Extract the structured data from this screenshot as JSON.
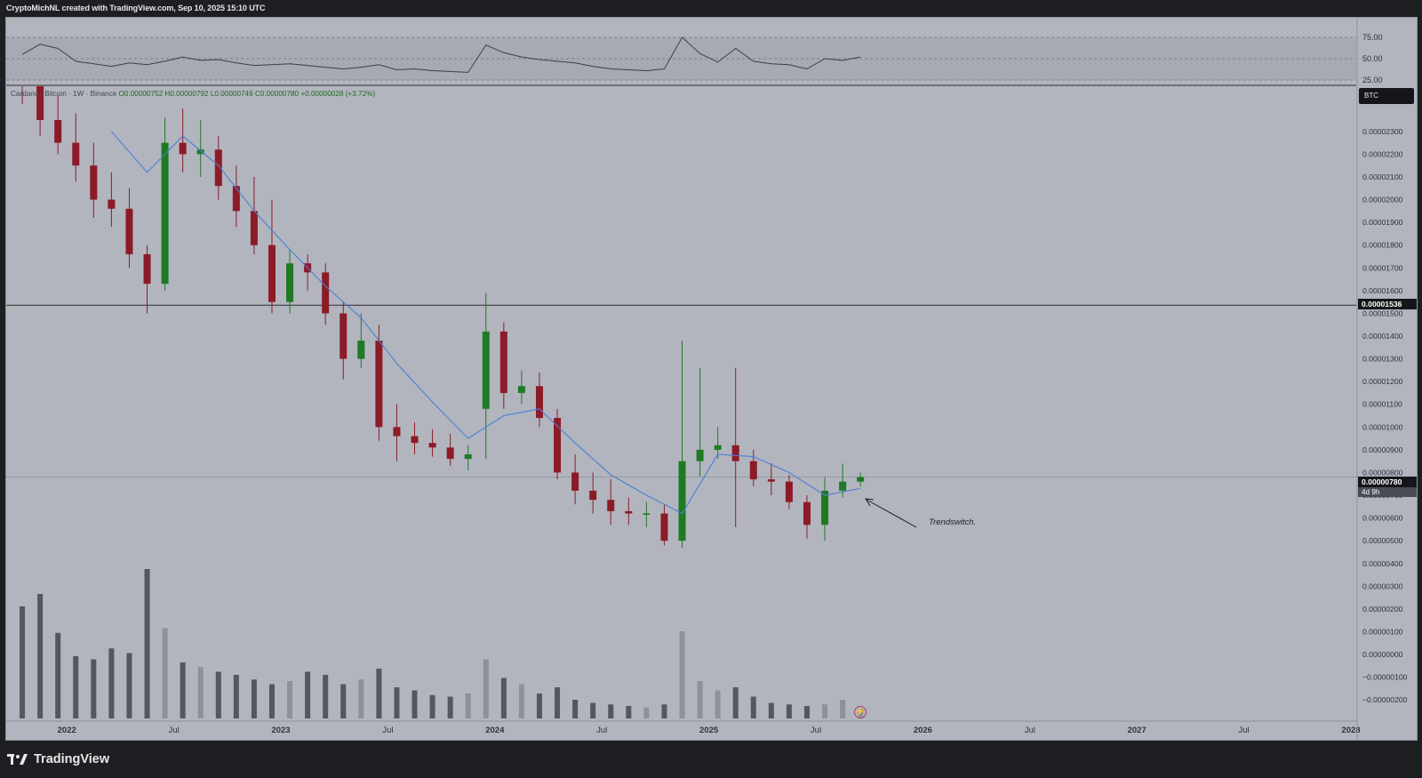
{
  "header": {
    "attribution": "CryptoMichNL created with TradingView.com, Sep 10, 2025 15:10 UTC"
  },
  "legend": {
    "symbol": "Cardano / Bitcoin · 1W · Binance",
    "ohlc": "O0.00000752  H0.00000792  L0.00000749  C0.00000780  +0.00000028 (+3.72%)"
  },
  "symbol_badge": "BTC",
  "horizontal_level": {
    "label": "0.00001536",
    "value": 1.536e-05
  },
  "last_price": {
    "label": "0.00000780",
    "countdown": "4d 9h",
    "value": 7.8e-06
  },
  "annotation": {
    "text": "Trendswitch."
  },
  "footer": {
    "brand": "TradingView"
  },
  "colors": {
    "background": "#b2b5be",
    "up": "#1e7a23",
    "down": "#8c1b27",
    "ma": "#4a7fd6",
    "volume_light": "#8a8d95",
    "volume_dark": "#4a4d54"
  },
  "chart_data": [
    {
      "type": "line",
      "name": "RSI pane",
      "y_ticks": [
        "75.00",
        "50.00",
        "25.00"
      ],
      "ylim": [
        25,
        75
      ],
      "x": [
        "2021-10",
        "2021-11",
        "2021-12",
        "2022-01",
        "2022-02",
        "2022-03",
        "2022-04",
        "2022-05",
        "2022-06",
        "2022-07",
        "2022-08",
        "2022-09",
        "2022-10",
        "2022-11",
        "2022-12",
        "2023-01",
        "2023-02",
        "2023-03",
        "2023-04",
        "2023-05",
        "2023-06",
        "2023-07",
        "2023-08",
        "2023-09",
        "2023-10",
        "2023-11",
        "2023-12",
        "2024-01",
        "2024-02",
        "2024-03",
        "2024-04",
        "2024-05",
        "2024-06",
        "2024-07",
        "2024-08",
        "2024-09",
        "2024-10",
        "2024-11",
        "2024-12",
        "2025-01",
        "2025-02",
        "2025-03",
        "2025-04",
        "2025-05",
        "2025-06",
        "2025-07",
        "2025-08",
        "2025-09"
      ],
      "values": [
        55,
        67,
        62,
        47,
        44,
        41,
        45,
        43,
        47,
        52,
        48,
        49,
        45,
        42,
        43,
        44,
        42,
        40,
        38,
        40,
        43,
        37,
        38,
        36,
        35,
        34,
        66,
        57,
        52,
        49,
        47,
        45,
        41,
        38,
        37,
        36,
        38,
        75,
        56,
        46,
        62,
        47,
        44,
        43,
        38,
        50,
        48,
        52
      ]
    },
    {
      "type": "candlestick",
      "name": "Cardano / Bitcoin · 1W · Binance",
      "y_ticks": [
        "0.00002300",
        "0.00002200",
        "0.00002100",
        "0.00002000",
        "0.00001900",
        "0.00001800",
        "0.00001700",
        "0.00001600",
        "0.00001500",
        "0.00001400",
        "0.00001300",
        "0.00001200",
        "0.00001100",
        "0.00001000",
        "0.00000900",
        "0.00000800",
        "0.00000700",
        "0.00000600",
        "0.00000500",
        "0.00000400",
        "0.00000300",
        "0.00000200",
        "0.00000100",
        "0.00000000",
        "−0.00000100",
        "−0.00000200"
      ],
      "x_ticks": [
        "2022",
        "Jul",
        "2023",
        "Jul",
        "2024",
        "Jul",
        "2025",
        "Jul",
        "2026",
        "Jul",
        "2027",
        "Jul",
        "2028"
      ],
      "ylim": [
        -2.5e-06,
        2.44e-05
      ],
      "x": [
        "2021-10",
        "2021-11",
        "2021-12",
        "2022-01",
        "2022-02",
        "2022-03",
        "2022-04",
        "2022-05",
        "2022-06",
        "2022-07",
        "2022-08",
        "2022-09",
        "2022-10",
        "2022-11",
        "2022-12",
        "2023-01",
        "2023-02",
        "2023-03",
        "2023-04",
        "2023-05",
        "2023-06",
        "2023-07",
        "2023-08",
        "2023-09",
        "2023-10",
        "2023-11",
        "2023-12",
        "2024-01",
        "2024-02",
        "2024-03",
        "2024-04",
        "2024-05",
        "2024-06",
        "2024-07",
        "2024-08",
        "2024-09",
        "2024-10",
        "2024-11",
        "2024-12",
        "2025-01",
        "2025-02",
        "2025-03",
        "2025-04",
        "2025-05",
        "2025-06",
        "2025-07",
        "2025-08",
        "2025-09"
      ],
      "open": [
        2.75e-05,
        2.5e-05,
        2.35e-05,
        2.25e-05,
        2.15e-05,
        2e-05,
        1.96e-05,
        1.76e-05,
        1.63e-05,
        2.25e-05,
        2.2e-05,
        2.22e-05,
        2.06e-05,
        1.95e-05,
        1.8e-05,
        1.55e-05,
        1.72e-05,
        1.68e-05,
        1.5e-05,
        1.3e-05,
        1.38e-05,
        1e-05,
        9.6e-06,
        9.3e-06,
        9.1e-06,
        8.6e-06,
        1.08e-05,
        1.42e-05,
        1.15e-05,
        1.18e-05,
        1.04e-05,
        8e-06,
        7.2e-06,
        6.8e-06,
        6.3e-06,
        6.2e-06,
        6.2e-06,
        5e-06,
        8.5e-06,
        9e-06,
        9.2e-06,
        8.5e-06,
        7.7e-06,
        7.6e-06,
        6.7e-06,
        5.7e-06,
        7.2e-06,
        7.6e-06
      ],
      "close": [
        2.5e-05,
        2.35e-05,
        2.25e-05,
        2.15e-05,
        2e-05,
        1.96e-05,
        1.76e-05,
        1.63e-05,
        2.25e-05,
        2.2e-05,
        2.22e-05,
        2.06e-05,
        1.95e-05,
        1.8e-05,
        1.55e-05,
        1.72e-05,
        1.68e-05,
        1.5e-05,
        1.3e-05,
        1.38e-05,
        1e-05,
        9.6e-06,
        9.3e-06,
        9.1e-06,
        8.6e-06,
        8.8e-06,
        1.42e-05,
        1.15e-05,
        1.18e-05,
        1.04e-05,
        8e-06,
        7.2e-06,
        6.8e-06,
        6.3e-06,
        6.2e-06,
        6.2e-06,
        5e-06,
        8.5e-06,
        9e-06,
        9.2e-06,
        8.5e-06,
        7.7e-06,
        7.6e-06,
        6.7e-06,
        5.7e-06,
        7.2e-06,
        7.6e-06,
        7.8e-06
      ],
      "high": [
        2.9e-05,
        2.62e-05,
        2.46e-05,
        2.38e-05,
        2.25e-05,
        2.12e-05,
        2.05e-05,
        1.8e-05,
        2.36e-05,
        2.4e-05,
        2.35e-05,
        2.28e-05,
        2.15e-05,
        2.1e-05,
        2e-05,
        1.78e-05,
        1.76e-05,
        1.72e-05,
        1.55e-05,
        1.5e-05,
        1.45e-05,
        1.1e-05,
        1.02e-05,
        9.9e-06,
        9.7e-06,
        9.2e-06,
        1.59e-05,
        1.46e-05,
        1.25e-05,
        1.24e-05,
        1.08e-05,
        8.8e-06,
        8e-06,
        7.7e-06,
        6.9e-06,
        6.7e-06,
        6.6e-06,
        1.38e-05,
        1.26e-05,
        1e-05,
        1.26e-05,
        9e-06,
        8.4e-06,
        7.9e-06,
        7e-06,
        7.8e-06,
        8.4e-06,
        8e-06
      ],
      "low": [
        2.42e-05,
        2.28e-05,
        2.2e-05,
        2.08e-05,
        1.92e-05,
        1.88e-05,
        1.7e-05,
        1.5e-05,
        1.6e-05,
        2.12e-05,
        2.1e-05,
        2e-05,
        1.88e-05,
        1.76e-05,
        1.5e-05,
        1.5e-05,
        1.6e-05,
        1.45e-05,
        1.21e-05,
        1.26e-05,
        9.4e-06,
        8.5e-06,
        8.8e-06,
        8.7e-06,
        8.3e-06,
        8.1e-06,
        8.6e-06,
        1.08e-05,
        1.1e-05,
        1e-05,
        7.7e-06,
        6.6e-06,
        6.2e-06,
        5.7e-06,
        5.7e-06,
        5.6e-06,
        4.8e-06,
        4.7e-06,
        7.8e-06,
        8.6e-06,
        5.6e-06,
        7.4e-06,
        7e-06,
        6.4e-06,
        5.1e-06,
        5e-06,
        6.9e-06,
        7.4e-06
      ]
    },
    {
      "type": "line",
      "name": "Moving average",
      "x": [
        "2022-03",
        "2022-05",
        "2022-07",
        "2022-09",
        "2022-11",
        "2023-01",
        "2023-03",
        "2023-05",
        "2023-07",
        "2023-09",
        "2023-11",
        "2024-01",
        "2024-03",
        "2024-05",
        "2024-07",
        "2024-09",
        "2024-11",
        "2025-01",
        "2025-03",
        "2025-05",
        "2025-07",
        "2025-09"
      ],
      "values": [
        2.3e-05,
        2.12e-05,
        2.28e-05,
        2.15e-05,
        1.95e-05,
        1.78e-05,
        1.62e-05,
        1.48e-05,
        1.28e-05,
        1.11e-05,
        9.5e-06,
        1.05e-05,
        1.08e-05,
        9.3e-06,
        7.9e-06,
        7e-06,
        6.2e-06,
        8.8e-06,
        8.7e-06,
        8e-06,
        7e-06,
        7.3e-06
      ]
    },
    {
      "type": "bar",
      "name": "Volume",
      "x": [
        "2021-10",
        "2021-11",
        "2021-12",
        "2022-01",
        "2022-02",
        "2022-03",
        "2022-04",
        "2022-05",
        "2022-06",
        "2022-07",
        "2022-08",
        "2022-09",
        "2022-10",
        "2022-11",
        "2022-12",
        "2023-01",
        "2023-02",
        "2023-03",
        "2023-04",
        "2023-05",
        "2023-06",
        "2023-07",
        "2023-08",
        "2023-09",
        "2023-10",
        "2023-11",
        "2023-12",
        "2024-01",
        "2024-02",
        "2024-03",
        "2024-04",
        "2024-05",
        "2024-06",
        "2024-07",
        "2024-08",
        "2024-09",
        "2024-10",
        "2024-11",
        "2024-12",
        "2025-01",
        "2025-02",
        "2025-03",
        "2025-04",
        "2025-05",
        "2025-06",
        "2025-07",
        "2025-08",
        "2025-09"
      ],
      "values": [
        0.72,
        0.8,
        0.55,
        0.4,
        0.38,
        0.45,
        0.42,
        0.96,
        0.58,
        0.36,
        0.33,
        0.3,
        0.28,
        0.25,
        0.22,
        0.24,
        0.3,
        0.28,
        0.22,
        0.25,
        0.32,
        0.2,
        0.18,
        0.15,
        0.14,
        0.16,
        0.38,
        0.26,
        0.22,
        0.16,
        0.2,
        0.12,
        0.1,
        0.09,
        0.08,
        0.07,
        0.09,
        0.56,
        0.24,
        0.18,
        0.2,
        0.14,
        0.1,
        0.09,
        0.08,
        0.09,
        0.12,
        0.06
      ]
    }
  ]
}
